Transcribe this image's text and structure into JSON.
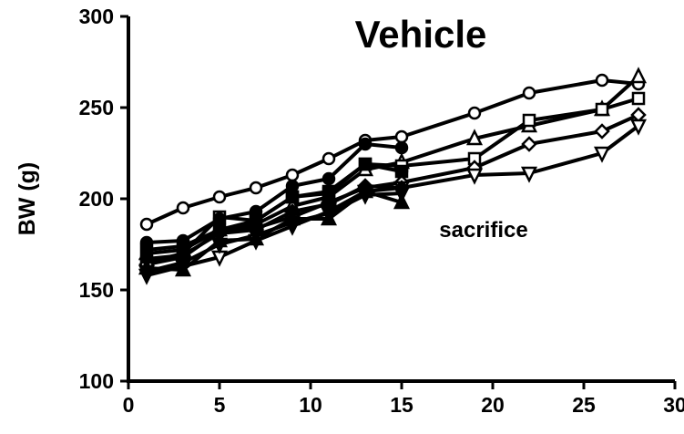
{
  "chart_data": {
    "type": "line",
    "title": "Vehicle",
    "xlabel": "",
    "ylabel": "BW (g)",
    "xlim": [
      0,
      30
    ],
    "ylim": [
      100,
      300
    ],
    "xticks": [
      0,
      5,
      10,
      15,
      20,
      25,
      30
    ],
    "yticks": [
      100,
      150,
      200,
      250,
      300
    ],
    "grid": false,
    "annotations": [
      {
        "text": "sacrifice",
        "x": 19.5,
        "y": 183
      }
    ],
    "colors": {
      "line": "#000000",
      "marker_fill": "#ffffff",
      "background": "#ffffff"
    },
    "series": [
      {
        "marker": "circle",
        "x": [
          1,
          3,
          5,
          7,
          9,
          11,
          13,
          15,
          19,
          22,
          26,
          28
        ],
        "y": [
          186,
          195,
          201,
          206,
          213,
          222,
          232,
          234,
          247,
          258,
          265,
          263
        ]
      },
      {
        "marker": "triangle-up",
        "x": [
          1,
          3,
          5,
          7,
          9,
          11,
          13,
          15,
          19,
          22,
          26,
          28
        ],
        "y": [
          170,
          172,
          183,
          186,
          196,
          201,
          216,
          220,
          233,
          240,
          249,
          267
        ]
      },
      {
        "marker": "square",
        "x": [
          1,
          3,
          5,
          7,
          9,
          11,
          13,
          15,
          19,
          22,
          26,
          28
        ],
        "y": [
          165,
          170,
          190,
          188,
          201,
          204,
          219,
          218,
          222,
          243,
          249,
          255
        ]
      },
      {
        "marker": "diamond",
        "x": [
          1,
          3,
          5,
          7,
          9,
          11,
          13,
          15,
          19,
          22,
          26,
          28
        ],
        "y": [
          164,
          168,
          182,
          184,
          190,
          198,
          206,
          209,
          217,
          230,
          237,
          246
        ]
      },
      {
        "marker": "triangle-down",
        "x": [
          1,
          3,
          5,
          7,
          9,
          11,
          13,
          15,
          19,
          22,
          26,
          28
        ],
        "y": [
          158,
          163,
          168,
          177,
          185,
          193,
          204,
          206,
          213,
          214,
          225,
          240
        ]
      },
      {
        "marker": "filled-circle",
        "x": [
          1,
          3,
          5,
          7,
          9,
          11,
          13,
          15
        ],
        "y": [
          176,
          177,
          189,
          193,
          207,
          211,
          230,
          228
        ]
      },
      {
        "marker": "filled-square",
        "x": [
          1,
          3,
          5,
          7,
          9,
          11,
          13,
          15
        ],
        "y": [
          172,
          174,
          183,
          188,
          201,
          203,
          219,
          215
        ]
      },
      {
        "marker": "filled-diamond",
        "x": [
          1,
          3,
          5,
          7,
          9,
          11,
          13,
          15
        ],
        "y": [
          167,
          169,
          181,
          183,
          193,
          197,
          207,
          206
        ]
      },
      {
        "marker": "filled-triangle-down",
        "x": [
          1,
          3,
          5,
          7,
          9,
          11,
          13,
          15
        ],
        "y": [
          160,
          165,
          175,
          180,
          187,
          192,
          202,
          203
        ]
      },
      {
        "marker": "filled-triangle-up",
        "x": [
          1,
          3,
          5,
          7,
          9,
          11,
          13,
          15
        ],
        "y": [
          162,
          161,
          177,
          178,
          189,
          189,
          204,
          198
        ]
      }
    ]
  }
}
